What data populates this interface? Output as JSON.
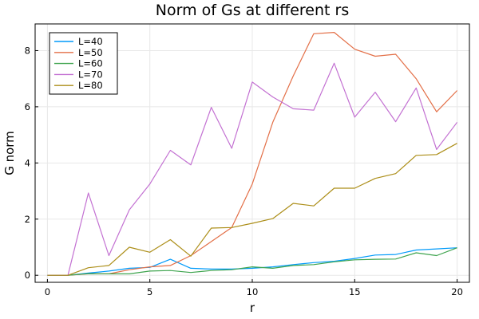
{
  "chart_data": {
    "type": "line",
    "title": "Norm of Gs at different rs",
    "xlabel": "r",
    "ylabel": "G norm",
    "xlim": [
      -0.6,
      20.6
    ],
    "ylim": [
      -0.25,
      8.95
    ],
    "xticks": [
      0,
      5,
      10,
      15,
      20
    ],
    "yticks": [
      0,
      2,
      4,
      6,
      8
    ],
    "grid": true,
    "legend_position": "top-left",
    "x": [
      0,
      1,
      2,
      3,
      4,
      5,
      6,
      7,
      8,
      9,
      10,
      11,
      12,
      13,
      14,
      15,
      16,
      17,
      18,
      19,
      20
    ],
    "series": [
      {
        "name": "L=40",
        "color": "#009AFA",
        "values": [
          0,
          0,
          0.08,
          0.15,
          0.25,
          0.28,
          0.57,
          0.25,
          0.22,
          0.22,
          0.25,
          0.3,
          0.38,
          0.45,
          0.5,
          0.6,
          0.72,
          0.74,
          0.9,
          0.94,
          0.98
        ]
      },
      {
        "name": "L=50",
        "color": "#E36F47",
        "values": [
          0,
          0,
          0.05,
          0.05,
          0.2,
          0.3,
          0.35,
          0.7,
          1.2,
          1.7,
          3.25,
          5.45,
          7.1,
          8.6,
          8.65,
          8.05,
          7.8,
          7.87,
          7.0,
          5.82,
          6.58
        ]
      },
      {
        "name": "L=60",
        "color": "#3EA44E",
        "values": [
          0,
          0,
          0.06,
          0.05,
          0.05,
          0.15,
          0.17,
          0.1,
          0.17,
          0.2,
          0.3,
          0.25,
          0.35,
          0.38,
          0.48,
          0.55,
          0.57,
          0.58,
          0.8,
          0.7,
          0.98
        ]
      },
      {
        "name": "L=70",
        "color": "#C371D2",
        "values": [
          0,
          0,
          2.93,
          0.7,
          2.33,
          3.25,
          4.45,
          3.93,
          5.98,
          4.52,
          6.88,
          6.35,
          5.93,
          5.88,
          7.55,
          5.63,
          6.52,
          5.47,
          6.67,
          4.48,
          5.45
        ]
      },
      {
        "name": "L=80",
        "color": "#AC8E18",
        "values": [
          0,
          0,
          0.27,
          0.35,
          1.0,
          0.82,
          1.27,
          0.68,
          1.68,
          1.7,
          1.85,
          2.02,
          2.56,
          2.47,
          3.1,
          3.1,
          3.45,
          3.62,
          4.27,
          4.3,
          4.7
        ]
      }
    ]
  }
}
